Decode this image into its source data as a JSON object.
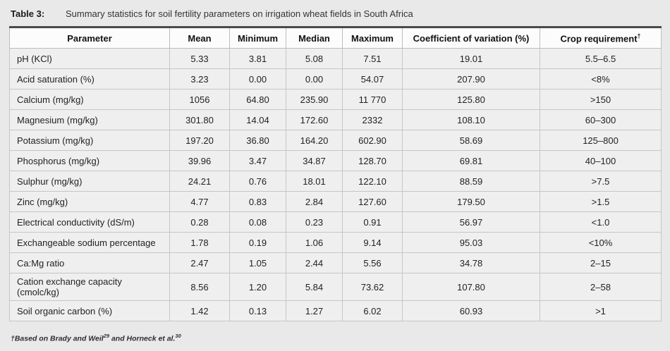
{
  "caption": {
    "label": "Table 3:",
    "text": "Summary statistics for soil fertility parameters on irrigation wheat fields in South Africa"
  },
  "table": {
    "headers": [
      "Parameter",
      "Mean",
      "Minimum",
      "Median",
      "Maximum",
      "Coefficient of variation (%)",
      "Crop requirement"
    ],
    "header_sup": "†",
    "rows": [
      [
        "pH (KCl)",
        "5.33",
        "3.81",
        "5.08",
        "7.51",
        "19.01",
        "5.5–6.5"
      ],
      [
        "Acid saturation (%)",
        "3.23",
        "0.00",
        "0.00",
        "54.07",
        "207.90",
        "<8%"
      ],
      [
        "Calcium (mg/kg)",
        "1056",
        "64.80",
        "235.90",
        "11 770",
        "125.80",
        ">150"
      ],
      [
        "Magnesium (mg/kg)",
        "301.80",
        "14.04",
        "172.60",
        "2332",
        "108.10",
        "60–300"
      ],
      [
        "Potassium (mg/kg)",
        "197.20",
        "36.80",
        "164.20",
        "602.90",
        "58.69",
        "125–800"
      ],
      [
        "Phosphorus (mg/kg)",
        "39.96",
        "3.47",
        "34.87",
        "128.70",
        "69.81",
        "40–100"
      ],
      [
        "Sulphur (mg/kg)",
        "24.21",
        "0.76",
        "18.01",
        "122.10",
        "88.59",
        ">7.5"
      ],
      [
        "Zinc (mg/kg)",
        "4.77",
        "0.83",
        "2.84",
        "127.60",
        "179.50",
        ">1.5"
      ],
      [
        "Electrical conductivity (dS/m)",
        "0.28",
        "0.08",
        "0.23",
        "0.91",
        "56.97",
        "<1.0"
      ],
      [
        "Exchangeable sodium percentage",
        "1.78",
        "0.19",
        "1.06",
        "9.14",
        "95.03",
        "<10%"
      ],
      [
        "Ca:Mg ratio",
        "2.47",
        "1.05",
        "2.44",
        "5.56",
        "34.78",
        "2–15"
      ],
      [
        "Cation exchange capacity (cmolc/kg)",
        "8.56",
        "1.20",
        "5.84",
        "73.62",
        "107.80",
        "2–58"
      ],
      [
        "Soil organic carbon (%)",
        "1.42",
        "0.13",
        "1.27",
        "6.02",
        "60.93",
        ">1"
      ]
    ]
  },
  "footnote": {
    "dagger": "†",
    "part1": "Based on Brady and Weil",
    "sup1": "29",
    "part2": " and Horneck et al.",
    "sup2": "30"
  }
}
